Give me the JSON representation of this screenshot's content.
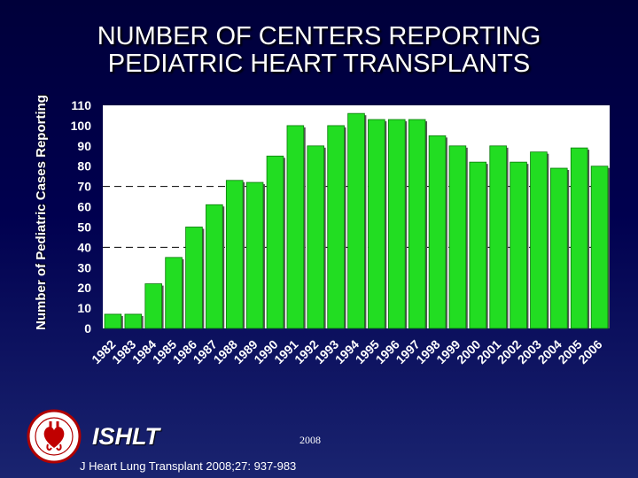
{
  "chart_data": {
    "type": "bar",
    "title": [
      "NUMBER OF CENTERS REPORTING",
      "PEDIATRIC HEART TRANSPLANTS"
    ],
    "ylabel": "Number of Pediatric Cases Reporting",
    "xlabel": "",
    "ylim": [
      0,
      110
    ],
    "yticks": [
      0,
      10,
      20,
      30,
      40,
      50,
      60,
      70,
      80,
      90,
      100,
      110
    ],
    "categories": [
      "1982",
      "1983",
      "1984",
      "1985",
      "1986",
      "1987",
      "1988",
      "1989",
      "1990",
      "1991",
      "1992",
      "1993",
      "1994",
      "1995",
      "1996",
      "1997",
      "1998",
      "1999",
      "2000",
      "2001",
      "2002",
      "2003",
      "2004",
      "2005",
      "2006"
    ],
    "values": [
      7,
      7,
      22,
      35,
      50,
      61,
      73,
      72,
      85,
      100,
      90,
      100,
      106,
      103,
      103,
      103,
      95,
      90,
      82,
      90,
      82,
      87,
      79,
      89,
      80
    ],
    "reference_lines": [
      40,
      70
    ],
    "grid": false,
    "bar_color": "#22dd22",
    "plot_background": "#ffffff"
  },
  "footer": {
    "org": "ISHLT",
    "year": "2008",
    "citation": "J Heart Lung Transplant 2008;27: 937-983"
  }
}
